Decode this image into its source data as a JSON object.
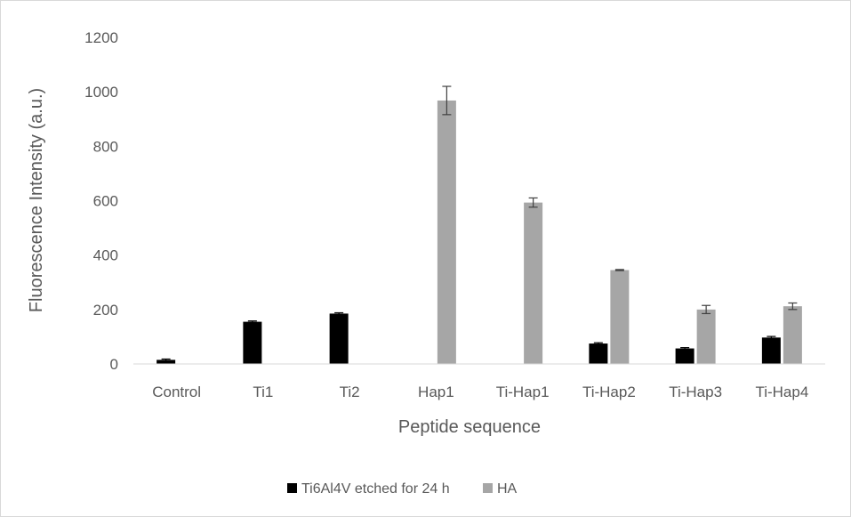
{
  "chart_data": {
    "type": "bar",
    "title": "",
    "xlabel": "Peptide sequence",
    "ylabel": "Fluorescence Intensity (a.u.)",
    "categories": [
      "Control",
      "Ti1",
      "Ti2",
      "Hap1",
      "Ti-Hap1",
      "Ti-Hap2",
      "Ti-Hap3",
      "Ti-Hap4"
    ],
    "yticks": [
      "0",
      "200",
      "400",
      "600",
      "800",
      "1000",
      "1200"
    ],
    "ylim": [
      0,
      1200
    ],
    "grid": false,
    "legend_position": "bottom",
    "series": [
      {
        "name": "Ti6Al4V etched for 24 h",
        "color": "#000000",
        "values": [
          15,
          155,
          185,
          0,
          0,
          75,
          57,
          97
        ],
        "errors": [
          3,
          3,
          3,
          0,
          0,
          3,
          3,
          4
        ]
      },
      {
        "name": "HA",
        "color": "#a6a6a6",
        "values": [
          1,
          0,
          0,
          968,
          593,
          345,
          200,
          212
        ],
        "errors": [
          0,
          0,
          0,
          52,
          17,
          2,
          15,
          12
        ]
      }
    ]
  }
}
